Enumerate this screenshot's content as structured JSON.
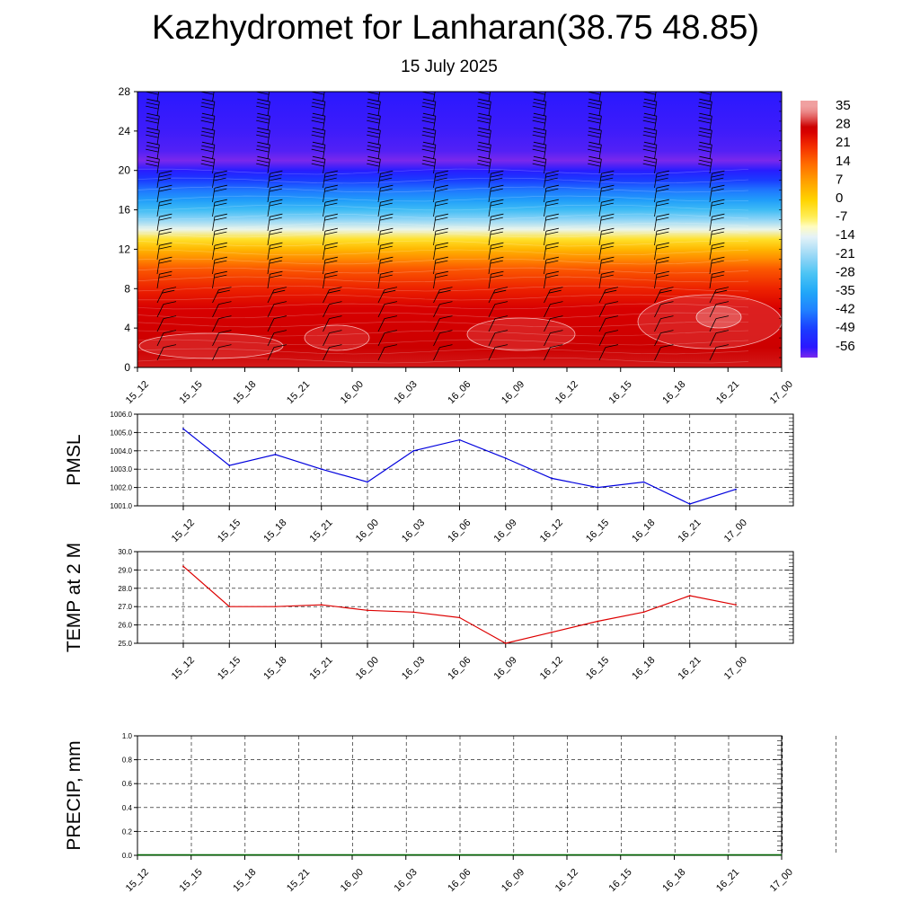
{
  "header": {
    "title": "Kazhydromet for Lanharan(38.75 48.85)",
    "date": "15 July 2025"
  },
  "chart_data": [
    {
      "id": "temperature_height",
      "type": "heatmap",
      "times": [
        "15_12",
        "15_15",
        "15_18",
        "15_21",
        "16_00",
        "16_03",
        "16_06",
        "16_09",
        "16_12",
        "16_15",
        "16_18",
        "16_21",
        "17_00"
      ],
      "ylim": [
        0,
        28
      ],
      "yticks": [
        0,
        4,
        8,
        12,
        16,
        20,
        24,
        28
      ],
      "colorbar": {
        "labels": [
          "35",
          "28",
          "21",
          "14",
          "7",
          "0",
          "-7",
          "-14",
          "-21",
          "-28",
          "-35",
          "-42",
          "-49",
          "-56"
        ],
        "range": [
          -60,
          38
        ]
      },
      "profile_temperature": [
        [
          0,
          29
        ],
        [
          2,
          28
        ],
        [
          4,
          27
        ],
        [
          6,
          26
        ],
        [
          8,
          22
        ],
        [
          10,
          16
        ],
        [
          11,
          10
        ],
        [
          12,
          4
        ],
        [
          13,
          -3
        ],
        [
          14,
          -13
        ],
        [
          15,
          -22
        ],
        [
          16,
          -30
        ],
        [
          17,
          -37
        ],
        [
          18,
          -43
        ],
        [
          19,
          -49
        ],
        [
          20,
          -55
        ],
        [
          21,
          -60
        ],
        [
          22,
          -58
        ],
        [
          24,
          -57
        ],
        [
          28,
          -56
        ]
      ],
      "wind_barbs": "yes"
    },
    {
      "id": "pmsl",
      "type": "line",
      "ylabel": "PMSL",
      "ylim": [
        1001.0,
        1006.0
      ],
      "yticks": [
        "1001.0",
        "1002.0",
        "1003.0",
        "1004.0",
        "1005.0",
        "1006.0"
      ],
      "categories": [
        "15_12",
        "15_15",
        "15_18",
        "15_21",
        "16_00",
        "16_03",
        "16_06",
        "16_09",
        "16_12",
        "16_15",
        "16_18",
        "16_21",
        "17_00"
      ],
      "series": [
        {
          "values": [
            1005.2,
            1003.2,
            1003.8,
            1003.0,
            1002.3,
            1004.0,
            1004.6,
            1003.6,
            1002.5,
            1002.0,
            1002.3,
            1001.1,
            1001.9
          ],
          "color": "#0000dd"
        }
      ]
    },
    {
      "id": "temp2m",
      "type": "line",
      "ylabel": "TEMP at 2 M",
      "ylim": [
        25.0,
        30.0
      ],
      "yticks": [
        "25.0",
        "26.0",
        "27.0",
        "28.0",
        "29.0",
        "30.0"
      ],
      "categories": [
        "15_12",
        "15_15",
        "15_18",
        "15_21",
        "16_00",
        "16_03",
        "16_06",
        "16_09",
        "16_12",
        "16_15",
        "16_18",
        "16_21",
        "17_00"
      ],
      "series": [
        {
          "values": [
            29.2,
            27.0,
            27.0,
            27.1,
            26.8,
            26.7,
            26.4,
            25.0,
            25.6,
            26.2,
            26.7,
            27.6,
            27.1
          ],
          "color": "#dd0000"
        }
      ]
    },
    {
      "id": "precip",
      "type": "bar",
      "ylabel": "PRECIP, mm",
      "ylim": [
        0.0,
        1.0
      ],
      "yticks": [
        "0.0",
        "0.2",
        "0.4",
        "0.6",
        "0.8",
        "1.0"
      ],
      "categories": [
        "15_12",
        "15_15",
        "15_18",
        "15_21",
        "16_00",
        "16_03",
        "16_06",
        "16_09",
        "16_12",
        "16_15",
        "16_18",
        "16_21",
        "17_00"
      ],
      "values": [
        0,
        0,
        0,
        0,
        0,
        0,
        0,
        0,
        0,
        0,
        0,
        0,
        0
      ],
      "color": "#006600"
    }
  ]
}
